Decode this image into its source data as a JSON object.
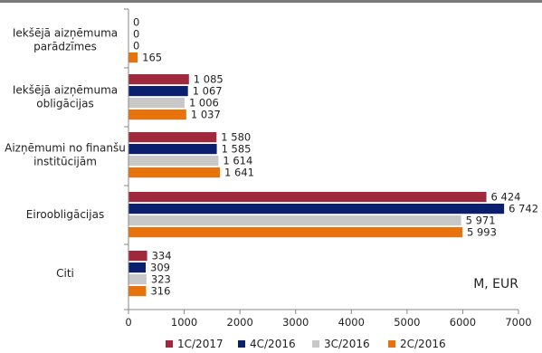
{
  "chart_data": {
    "type": "bar",
    "orientation": "horizontal",
    "categories": [
      [
        "Iekšējā aizņēmuma",
        "parādzīmes"
      ],
      [
        "Iekšējā aizņēmuma",
        "obligācijas"
      ],
      [
        "Aizņēmumi no finanšu",
        "institūcijām"
      ],
      [
        "Eiroobligācijas"
      ],
      [
        "Citi"
      ]
    ],
    "series": [
      {
        "name": "1C/2017",
        "color": "#a0283c",
        "values": [
          0,
          1085,
          1580,
          6424,
          334
        ],
        "labels": [
          "0",
          "1 085",
          "1 580",
          "6 424",
          "334"
        ]
      },
      {
        "name": "4C/2016",
        "color": "#0a1f6e",
        "values": [
          0,
          1067,
          1585,
          6742,
          309
        ],
        "labels": [
          "0",
          "1 067",
          "1 585",
          "6 742",
          "309"
        ]
      },
      {
        "name": "3C/2016",
        "color": "#c8c8c8",
        "values": [
          0,
          1006,
          1614,
          5971,
          323
        ],
        "labels": [
          "0",
          "1 006",
          "1 614",
          "5 971",
          "323"
        ]
      },
      {
        "name": "2C/2016",
        "color": "#e8730c",
        "values": [
          165,
          1037,
          1641,
          5993,
          316
        ],
        "labels": [
          "165",
          "1 037",
          "1 641",
          "5 993",
          "316"
        ]
      }
    ],
    "xlim": [
      0,
      7000
    ],
    "xticks": [
      0,
      1000,
      2000,
      3000,
      4000,
      5000,
      6000,
      7000
    ],
    "unit_label": "M, EUR",
    "grid": false,
    "legend_position": "bottom"
  }
}
